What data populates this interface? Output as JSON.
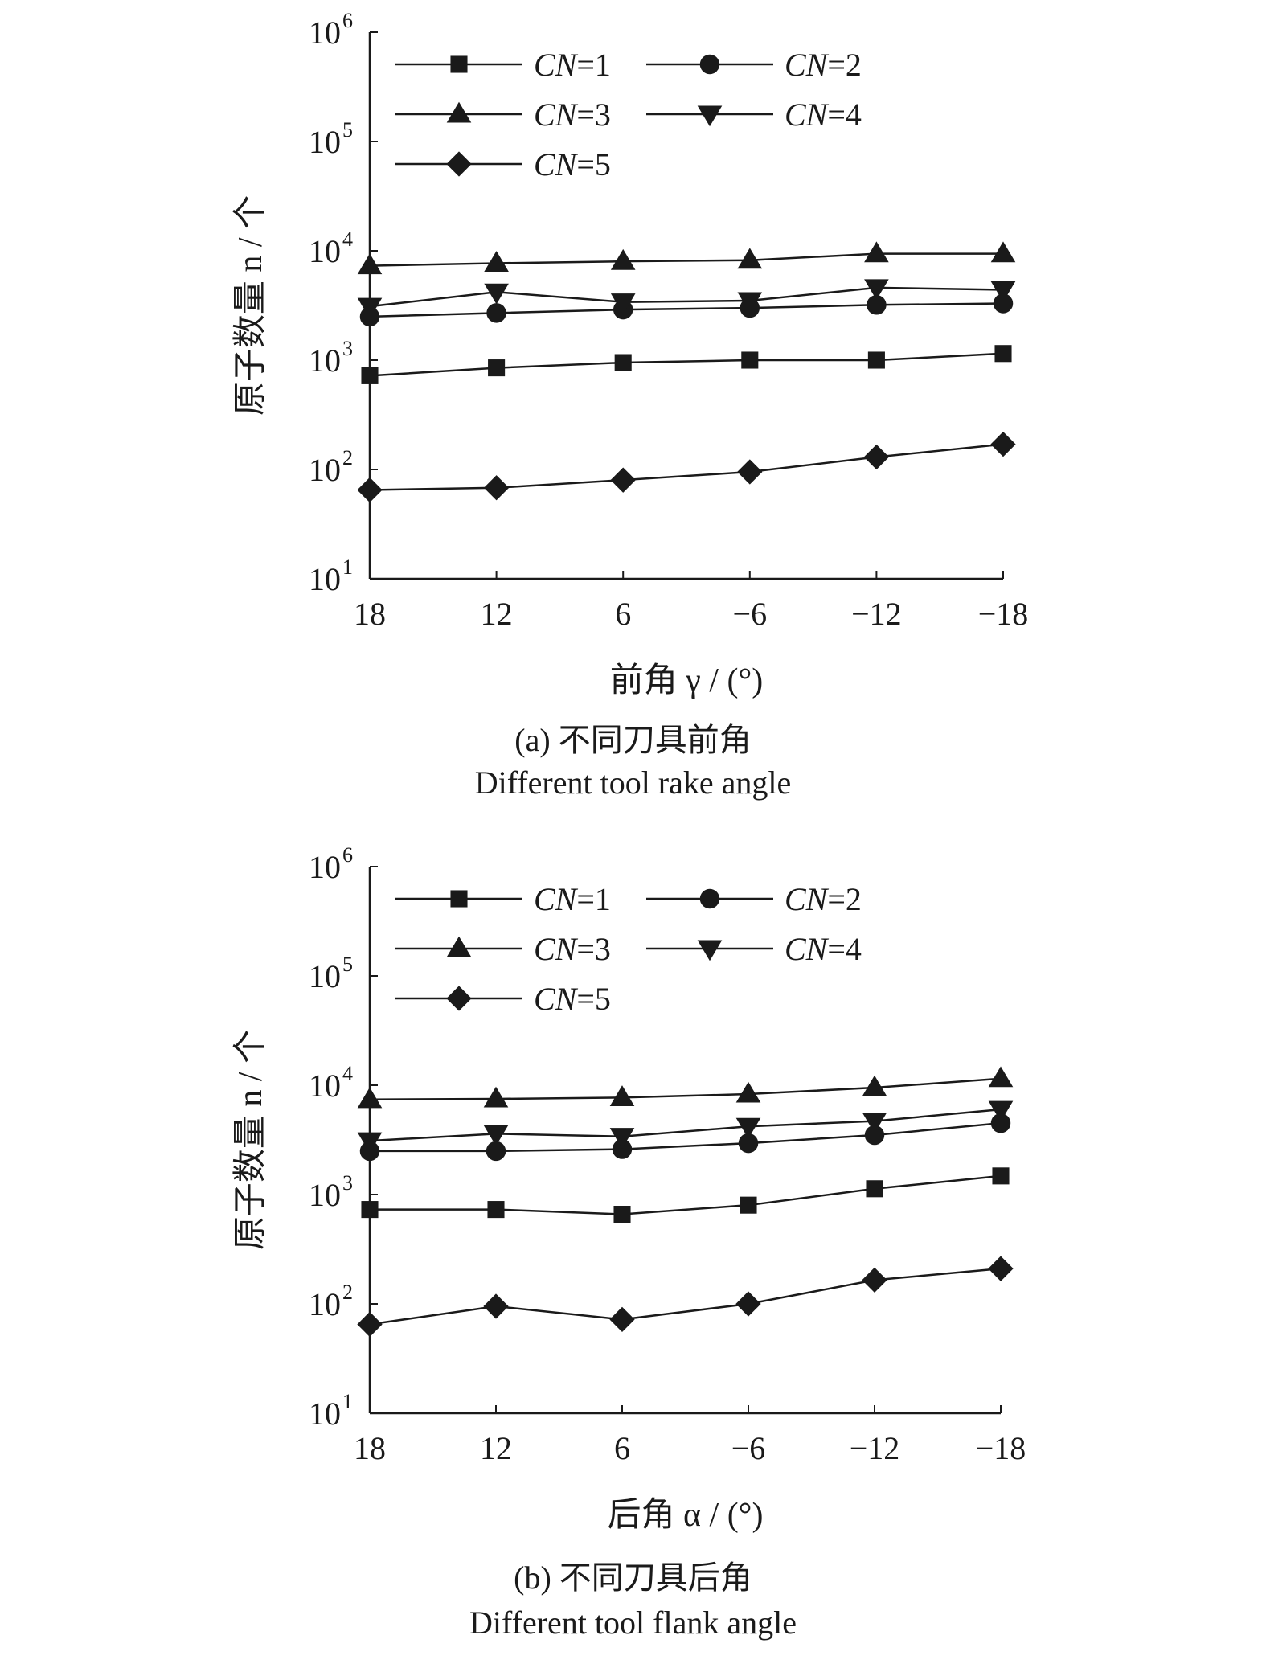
{
  "chart_data": [
    {
      "type": "line",
      "panel": "a",
      "x_scale": "categorical",
      "y_scale": "log",
      "ylim": [
        10,
        1000000
      ],
      "y_ticks": [
        {
          "base": "10",
          "exp": "1"
        },
        {
          "base": "10",
          "exp": "2"
        },
        {
          "base": "10",
          "exp": "3"
        },
        {
          "base": "10",
          "exp": "4"
        },
        {
          "base": "10",
          "exp": "5"
        },
        {
          "base": "10",
          "exp": "6"
        }
      ],
      "categories": [
        "18",
        "12",
        "6",
        "−6",
        "−12",
        "−18"
      ],
      "ylabel": "原子数量 n / 个",
      "xlabel": "前角 γ / (°)",
      "caption_cn": "(a) 不同刀具前角",
      "caption_en": "Different tool rake angle",
      "legend_position": "top-left",
      "grid": false,
      "series": [
        {
          "name": "CN=1",
          "marker": "square",
          "values": [
            720,
            850,
            950,
            1000,
            1000,
            1150
          ]
        },
        {
          "name": "CN=2",
          "marker": "circle",
          "values": [
            2500,
            2700,
            2900,
            3000,
            3200,
            3300
          ]
        },
        {
          "name": "CN=3",
          "marker": "triangle-up",
          "values": [
            7300,
            7700,
            8000,
            8200,
            9400,
            9400
          ]
        },
        {
          "name": "CN=4",
          "marker": "triangle-down",
          "values": [
            3100,
            4200,
            3400,
            3500,
            4600,
            4400
          ]
        },
        {
          "name": "CN=5",
          "marker": "diamond",
          "values": [
            65,
            68,
            80,
            95,
            130,
            170
          ]
        }
      ]
    },
    {
      "type": "line",
      "panel": "b",
      "x_scale": "categorical",
      "y_scale": "log",
      "ylim": [
        10,
        1000000
      ],
      "y_ticks": [
        {
          "base": "10",
          "exp": "1"
        },
        {
          "base": "10",
          "exp": "2"
        },
        {
          "base": "10",
          "exp": "3"
        },
        {
          "base": "10",
          "exp": "4"
        },
        {
          "base": "10",
          "exp": "5"
        },
        {
          "base": "10",
          "exp": "6"
        }
      ],
      "categories": [
        "18",
        "12",
        "6",
        "−6",
        "−12",
        "−18"
      ],
      "ylabel": "原子数量 n / 个",
      "xlabel": "后角 α / (°)",
      "caption_cn": "(b) 不同刀具后角",
      "caption_en": "Different tool flank angle",
      "legend_position": "top-left",
      "grid": false,
      "series": [
        {
          "name": "CN=1",
          "marker": "square",
          "values": [
            730,
            730,
            660,
            800,
            1130,
            1480
          ]
        },
        {
          "name": "CN=2",
          "marker": "circle",
          "values": [
            2500,
            2500,
            2600,
            2950,
            3500,
            4500
          ]
        },
        {
          "name": "CN=3",
          "marker": "triangle-up",
          "values": [
            7400,
            7500,
            7700,
            8300,
            9500,
            11500
          ]
        },
        {
          "name": "CN=4",
          "marker": "triangle-down",
          "values": [
            3100,
            3600,
            3400,
            4200,
            4700,
            6000
          ]
        },
        {
          "name": "CN=5",
          "marker": "diamond",
          "values": [
            65,
            95,
            72,
            100,
            165,
            210
          ]
        }
      ]
    }
  ]
}
